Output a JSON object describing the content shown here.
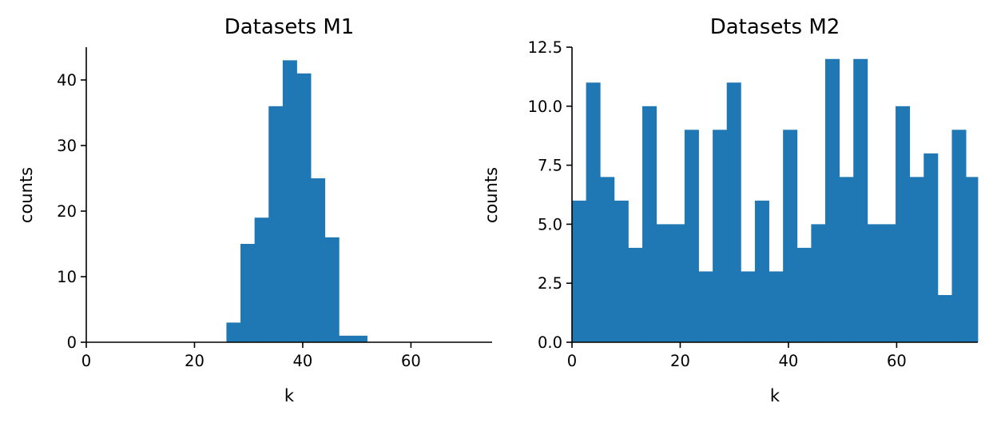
{
  "chart_data": [
    {
      "type": "bar",
      "title": "Datasets M1",
      "xlabel": "k",
      "ylabel": "counts",
      "xlim": [
        0,
        75
      ],
      "ylim": [
        0,
        45
      ],
      "xticks": [
        "0",
        "20",
        "40",
        "60"
      ],
      "yticks": [
        "0",
        "10",
        "20",
        "30",
        "40"
      ],
      "bin_edges": [
        25.9,
        28.5,
        31.1,
        33.7,
        36.3,
        38.9,
        41.5,
        44.1,
        46.7,
        49.3,
        51.9
      ],
      "values": [
        3,
        15,
        19,
        36,
        43,
        41,
        25,
        16,
        1,
        1
      ],
      "color": "#1f77b4",
      "grid": false
    },
    {
      "type": "bar",
      "title": "Datasets M2",
      "xlabel": "k",
      "ylabel": "counts",
      "xlim": [
        0,
        75
      ],
      "ylim": [
        0,
        12.5
      ],
      "xticks": [
        "0",
        "20",
        "40",
        "60"
      ],
      "yticks": [
        "0.0",
        "2.5",
        "5.0",
        "7.5",
        "10.0",
        "12.5"
      ],
      "bin_edges": [
        0,
        2.6,
        5.2,
        7.8,
        10.4,
        13.0,
        15.6,
        18.2,
        20.8,
        23.4,
        26.0,
        28.6,
        31.2,
        33.8,
        36.4,
        39.0,
        41.6,
        44.2,
        46.8,
        49.4,
        52.0,
        54.6,
        57.2,
        59.8,
        62.4,
        65.0,
        67.6,
        70.2,
        72.8,
        75.4
      ],
      "values": [
        6,
        11,
        7,
        6,
        4,
        10,
        5,
        5,
        9,
        3,
        9,
        11,
        3,
        6,
        3,
        9,
        4,
        5,
        12,
        7,
        12,
        5,
        5,
        10,
        7,
        8,
        2,
        9,
        7
      ],
      "color": "#1f77b4",
      "grid": false
    }
  ]
}
